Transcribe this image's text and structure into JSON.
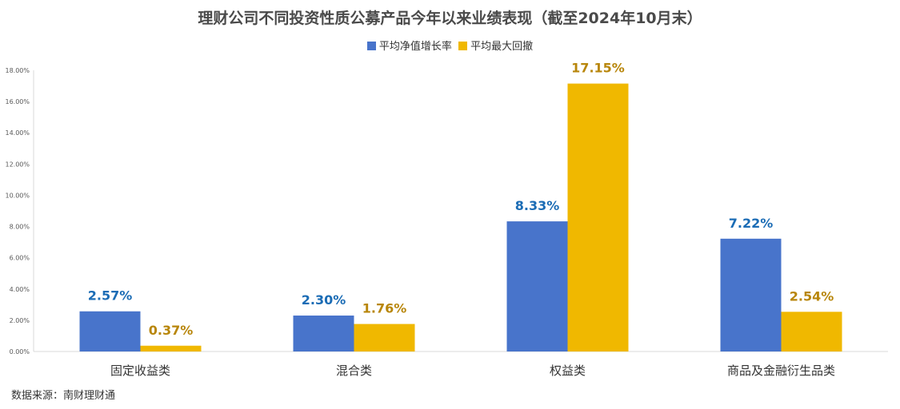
{
  "chart_data": {
    "type": "bar",
    "title": "理财公司不同投资性质公募产品今年以来业绩表现（截至2024年10月末）",
    "categories": [
      "固定收益类",
      "混合类",
      "权益类",
      "商品及金融衍生品类"
    ],
    "series": [
      {
        "name": "平均净值增长率",
        "values": [
          2.57,
          2.3,
          8.33,
          7.22
        ],
        "labels": [
          "2.57%",
          "2.30%",
          "8.33%",
          "7.22%"
        ],
        "color": "#4874CB"
      },
      {
        "name": "平均最大回撤",
        "values": [
          0.37,
          1.76,
          17.15,
          2.54
        ],
        "labels": [
          "0.37%",
          "1.76%",
          "17.15%",
          "2.54%"
        ],
        "color": "#F0B800"
      }
    ],
    "label_colors": [
      "#1B6CB5",
      "#B8860B"
    ],
    "ylim": [
      0,
      18
    ],
    "y_ticks": [
      "0.00%",
      "2.00%",
      "4.00%",
      "6.00%",
      "8.00%",
      "10.00%",
      "12.00%",
      "14.00%",
      "16.00%",
      "18.00%"
    ],
    "xlabel": "",
    "ylabel": "",
    "legend_position": "top-center",
    "grid": false
  },
  "source_note": "数据来源：南财理财通"
}
